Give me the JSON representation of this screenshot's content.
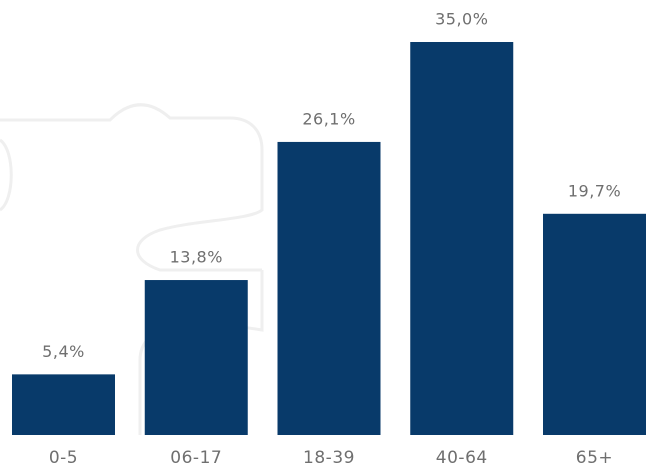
{
  "chart_data": {
    "type": "bar",
    "categories": [
      "0-5",
      "06-17",
      "18-39",
      "40-64",
      "65+"
    ],
    "values": [
      5.4,
      13.8,
      26.1,
      35.0,
      19.7
    ],
    "value_labels": [
      "5,4%",
      "13,8%",
      "26,1%",
      "35,0%",
      "19,7%"
    ],
    "color": "#083a6a"
  }
}
